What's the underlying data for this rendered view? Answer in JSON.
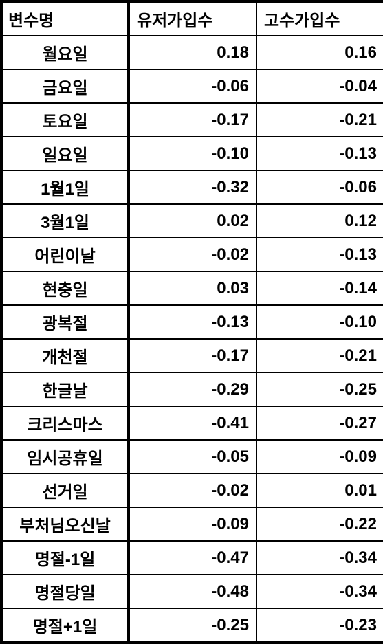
{
  "table": {
    "columns": [
      "변수명",
      "유저가입수",
      "고수가입수"
    ],
    "rows": [
      {
        "name": "월요일",
        "v1": "0.18",
        "v2": "0.16"
      },
      {
        "name": "금요일",
        "v1": "-0.06",
        "v2": "-0.04"
      },
      {
        "name": "토요일",
        "v1": "-0.17",
        "v2": "-0.21"
      },
      {
        "name": "일요일",
        "v1": "-0.10",
        "v2": "-0.13"
      },
      {
        "name": "1월1일",
        "v1": "-0.32",
        "v2": "-0.06"
      },
      {
        "name": "3월1일",
        "v1": "0.02",
        "v2": "0.12"
      },
      {
        "name": "어린이날",
        "v1": "-0.02",
        "v2": "-0.13"
      },
      {
        "name": "현충일",
        "v1": "0.03",
        "v2": "-0.14"
      },
      {
        "name": "광복절",
        "v1": "-0.13",
        "v2": "-0.10"
      },
      {
        "name": "개천절",
        "v1": "-0.17",
        "v2": "-0.21"
      },
      {
        "name": "한글날",
        "v1": "-0.29",
        "v2": "-0.25"
      },
      {
        "name": "크리스마스",
        "v1": "-0.41",
        "v2": "-0.27"
      },
      {
        "name": "임시공휴일",
        "v1": "-0.05",
        "v2": "-0.09"
      },
      {
        "name": "선거일",
        "v1": "-0.02",
        "v2": "0.01"
      },
      {
        "name": "부처님오신날",
        "v1": "-0.09",
        "v2": "-0.22"
      },
      {
        "name": "명절-1일",
        "v1": "-0.47",
        "v2": "-0.34"
      },
      {
        "name": "명절당일",
        "v1": "-0.48",
        "v2": "-0.34"
      },
      {
        "name": "명절+1일",
        "v1": "-0.25",
        "v2": "-0.23"
      }
    ]
  }
}
